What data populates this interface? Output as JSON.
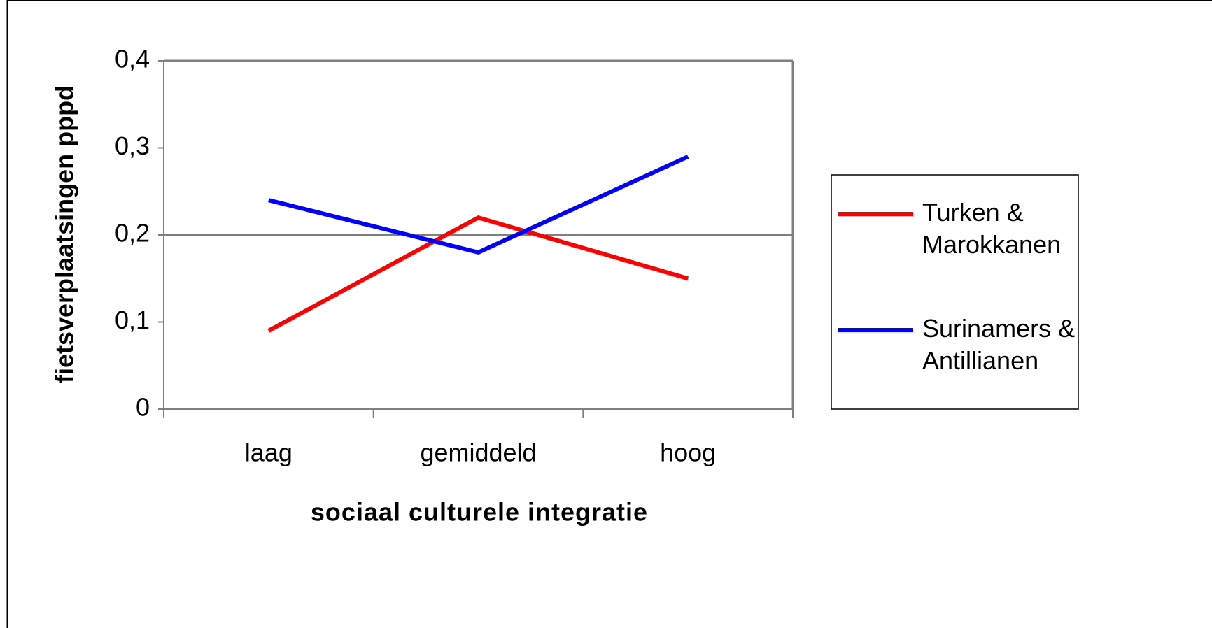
{
  "chart_data": {
    "type": "line",
    "xlabel": "sociaal culturele integratie",
    "ylabel": "fietsverplaatsingen pppd",
    "categories": [
      "laag",
      "gemiddeld",
      "hoog"
    ],
    "series": [
      {
        "name": "Turken & Marokkanen",
        "color": "#ff0000",
        "values": [
          0.09,
          0.22,
          0.15
        ]
      },
      {
        "name": "Surinamers & Antillianen",
        "color": "#0000ff",
        "values": [
          0.24,
          0.18,
          0.29
        ]
      }
    ],
    "ylim": [
      0,
      0.4
    ],
    "yticks": [
      0,
      {
        "value": 0.1,
        "label": "0,1"
      },
      {
        "value": 0.2,
        "label": "0,2"
      },
      {
        "value": 0.3,
        "label": "0,3"
      },
      {
        "value": 0.4,
        "label": "0,4"
      }
    ],
    "grid": true,
    "legend": "right"
  }
}
